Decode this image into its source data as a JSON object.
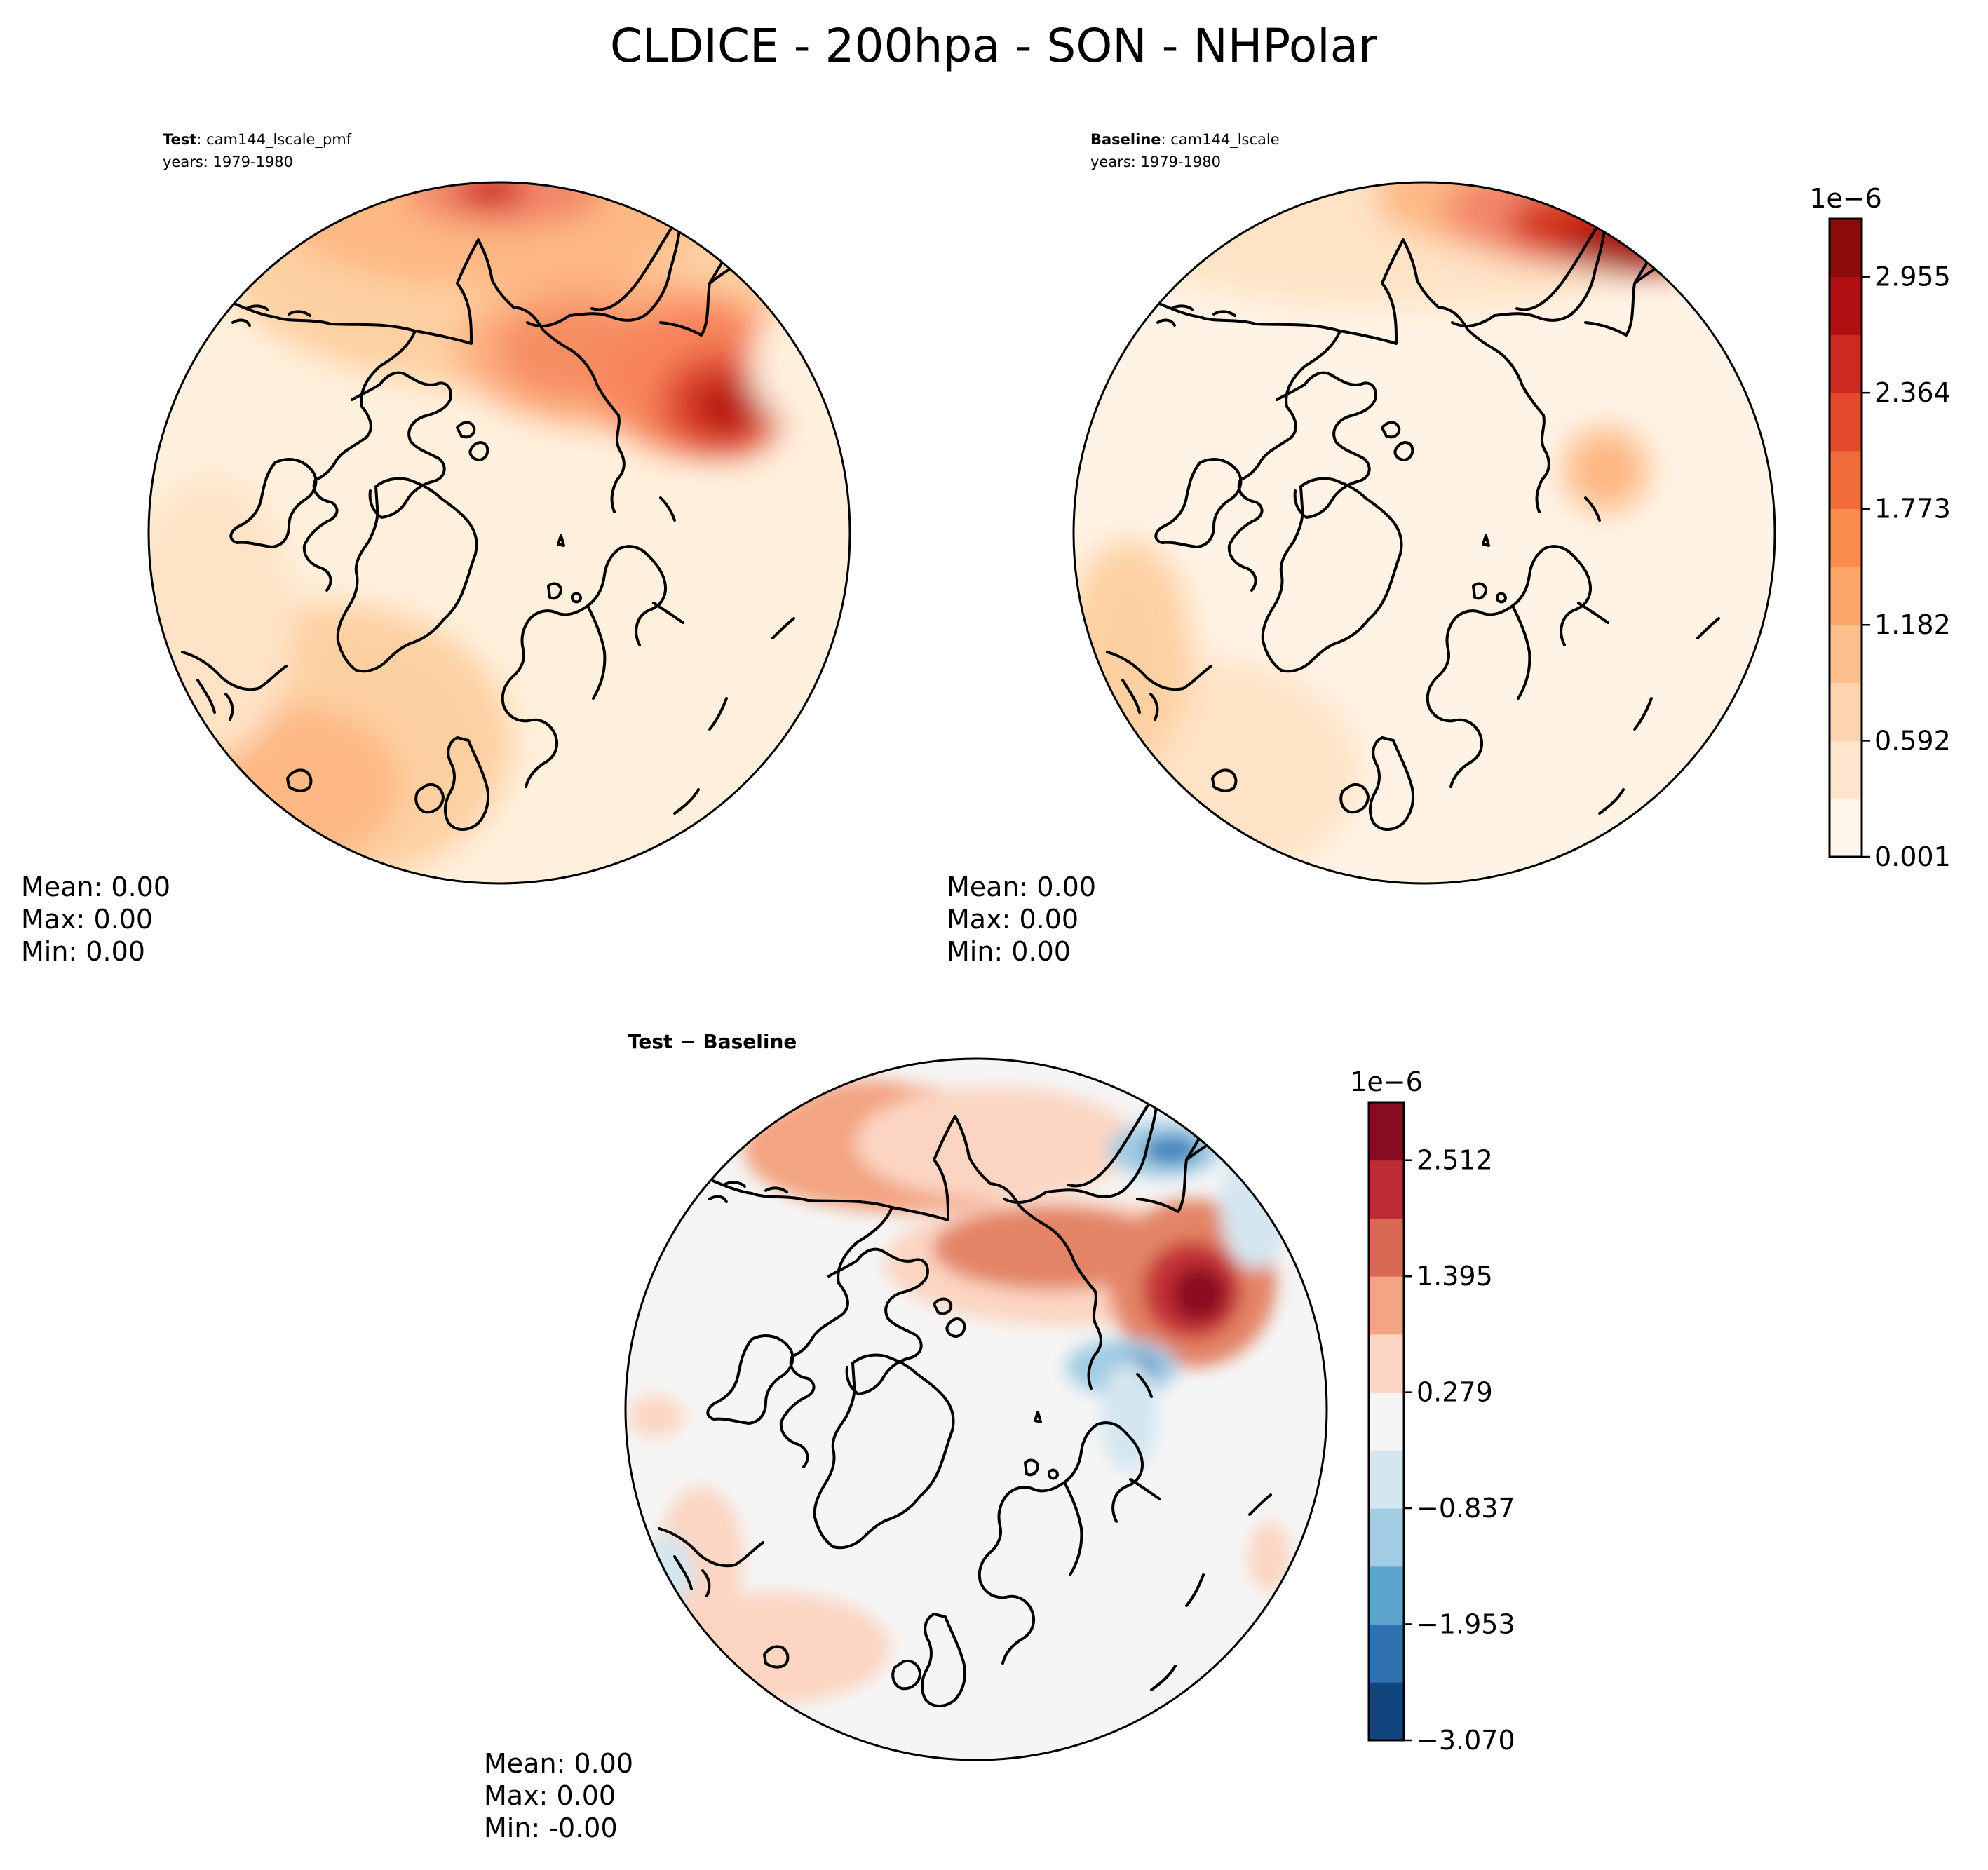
{
  "title": "CLDICE - 200hpa - SON - NHPolar",
  "panels": [
    {
      "id": "test",
      "label_bold": "Test",
      "label_rest": ": cam144_lscale_pmf",
      "years": "years: 1979-1980",
      "stats": {
        "mean": "Mean:  0.00",
        "max": "Max:  0.00",
        "min": "Min:  0.00"
      }
    },
    {
      "id": "baseline",
      "label_bold": "Baseline",
      "label_rest": ": cam144_lscale",
      "years": "years: 1979-1980",
      "stats": {
        "mean": "Mean:  0.00",
        "max": "Max:  0.00",
        "min": "Min:  0.00"
      }
    },
    {
      "id": "diff",
      "label": "Test − Baseline",
      "stats": {
        "mean": "Mean:  0.00",
        "max": "Max:  0.00",
        "min": "Min: -0.00"
      }
    }
  ],
  "chart_data": [
    {
      "type": "heatmap",
      "colorbar": {
        "exponent": "1e−6",
        "colors": [
          "#fff5eb",
          "#fee6ce",
          "#fdd4ad",
          "#fdc08c",
          "#fda76b",
          "#fc8c4e",
          "#f16c3a",
          "#e34a2c",
          "#cc2a1f",
          "#b20f13",
          "#8c0c0c"
        ],
        "tick_labels": [
          "0.001",
          "0.592",
          "1.182",
          "1.773",
          "2.364",
          "2.955"
        ],
        "tick_values": [
          0.001,
          0.592,
          1.182,
          1.773,
          2.364,
          2.955
        ],
        "range": [
          0.001,
          3.25
        ]
      }
    },
    {
      "type": "heatmap",
      "colorbar": {
        "exponent": "1e−6",
        "colors": [
          "#10457e",
          "#2f70b1",
          "#5da4cf",
          "#a2cce4",
          "#d4e6f0",
          "#f5f5f5",
          "#fbd5c2",
          "#f3a482",
          "#da6954",
          "#bd2c35",
          "#860b23"
        ],
        "tick_labels": [
          "−3.070",
          "−1.953",
          "−0.837",
          "0.279",
          "1.395",
          "2.512"
        ],
        "tick_values": [
          -3.07,
          -1.953,
          -0.837,
          0.279,
          1.395,
          2.512
        ],
        "range": [
          -3.07,
          3.07
        ]
      }
    }
  ]
}
